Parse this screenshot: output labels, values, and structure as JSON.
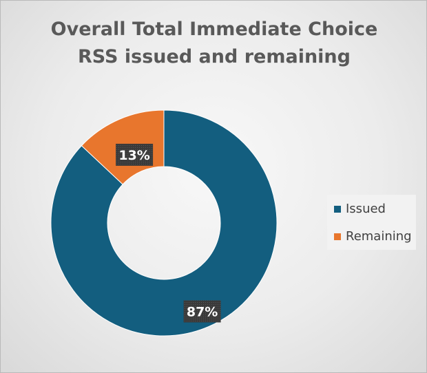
{
  "chart_data": {
    "type": "pie",
    "variant": "donut",
    "title_lines": [
      "Overall Total Immediate Choice",
      "RSS issued and remaining"
    ],
    "categories": [
      "Issued",
      "Remaining"
    ],
    "values": [
      87,
      13
    ],
    "data_labels": [
      "87%",
      "13%"
    ],
    "colors": [
      "#135e7f",
      "#e8762d"
    ],
    "legend_position": "right"
  }
}
